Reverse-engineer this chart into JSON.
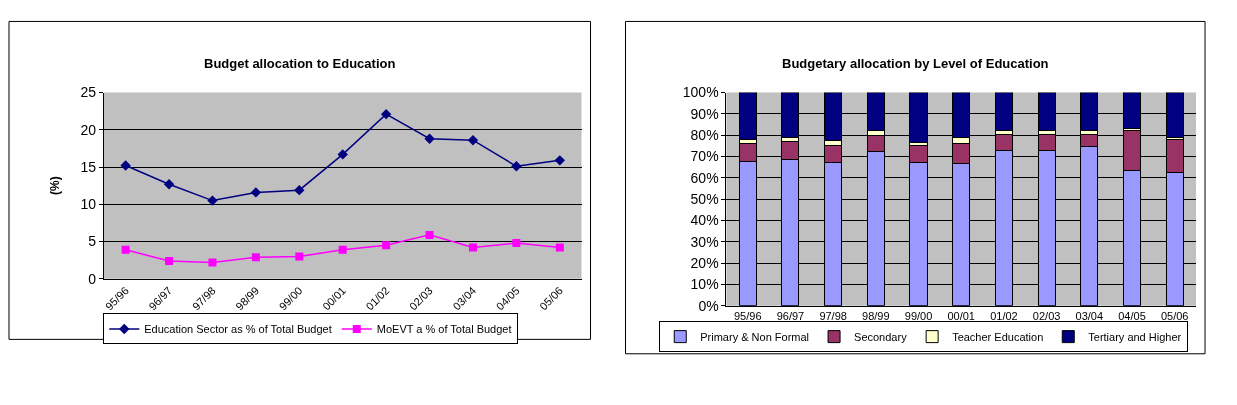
{
  "chart_data": [
    {
      "type": "line",
      "title": "Budget allocation to Education",
      "ylabel": "(%)",
      "categories": [
        "95/96",
        "96/97",
        "97/98",
        "98/99",
        "99/00",
        "00/01",
        "01/02",
        "02/03",
        "03/04",
        "04/05",
        "05/06"
      ],
      "series": [
        {
          "name": "Education Sector as % of Total Budget",
          "color": "#000080",
          "marker": "diamond",
          "values": [
            15.2,
            12.7,
            10.5,
            11.6,
            11.9,
            16.7,
            22.1,
            18.8,
            18.6,
            15.1,
            15.9
          ]
        },
        {
          "name": "MoEVT a % of Total Budget",
          "color": "#ff00ff",
          "marker": "square",
          "values": [
            3.9,
            2.4,
            2.2,
            2.9,
            3.0,
            3.9,
            4.5,
            5.9,
            4.2,
            4.8,
            4.2
          ]
        }
      ],
      "ylim": [
        0,
        25
      ],
      "yticks": [
        0,
        5,
        10,
        15,
        20,
        25
      ],
      "grid": "y",
      "legend": "bottom",
      "line_style": "solid"
    },
    {
      "type": "bar",
      "stacked": true,
      "title": "Budgetary allocation by Level of Education",
      "categories": [
        "95/96",
        "96/97",
        "97/98",
        "98/99",
        "99/00",
        "00/01",
        "01/02",
        "02/03",
        "03/04",
        "04/05",
        "05/06"
      ],
      "series": [
        {
          "name": "Primary & Non Formal",
          "color": "#9999ff",
          "values": [
            67.5,
            68.5,
            67,
            72.5,
            67,
            66.5,
            73,
            73,
            74.5,
            63.5,
            62.5
          ]
        },
        {
          "name": "Secondary",
          "color": "#993366",
          "values": [
            8.5,
            8.5,
            8,
            7.5,
            8,
            9.5,
            7.5,
            7.5,
            6,
            18.5,
            15.5
          ]
        },
        {
          "name": "Teacher Education",
          "color": "#ffffcc",
          "values": [
            2,
            2,
            2.5,
            2,
            1.5,
            3,
            1.5,
            1.5,
            1.5,
            1,
            1
          ]
        },
        {
          "name": "Tertiary and Higher",
          "color": "#000080",
          "values": [
            22,
            21,
            22.5,
            18,
            23.5,
            21,
            18,
            18,
            18,
            17,
            21
          ]
        }
      ],
      "ylim": [
        0,
        100
      ],
      "yticks": [
        {
          "value": 0,
          "label": "0%"
        },
        {
          "value": 10,
          "label": "10%"
        },
        {
          "value": 20,
          "label": "20%"
        },
        {
          "value": 30,
          "label": "30%"
        },
        {
          "value": 40,
          "label": "40%"
        },
        {
          "value": 50,
          "label": "50%"
        },
        {
          "value": 60,
          "label": "60%"
        },
        {
          "value": 70,
          "label": "70%"
        },
        {
          "value": 80,
          "label": "80%"
        },
        {
          "value": 90,
          "label": "90%"
        },
        {
          "value": 100,
          "label": "100%"
        }
      ],
      "grid": "y",
      "legend": "bottom"
    }
  ]
}
